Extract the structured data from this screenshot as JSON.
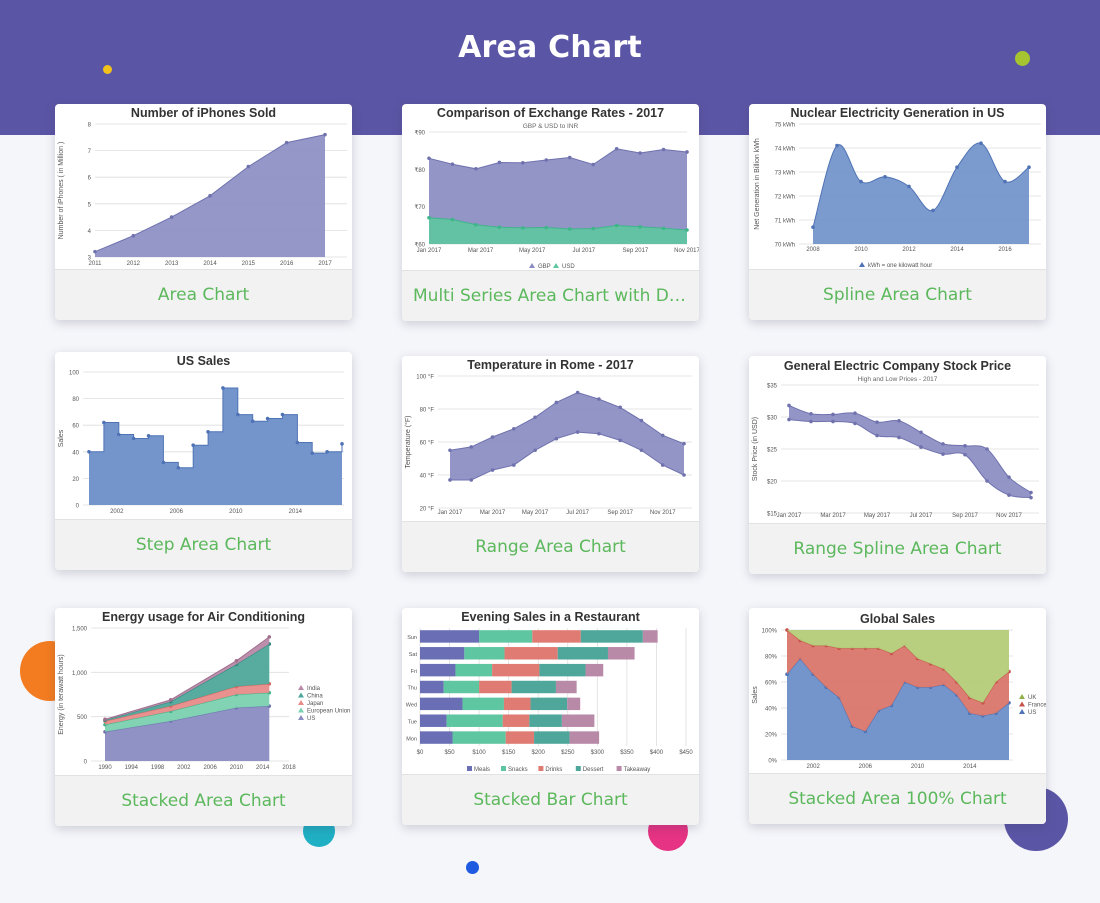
{
  "page": {
    "title": "Area Chart"
  },
  "decorations": {
    "colors": [
      "#f2c21b",
      "#a6c42f",
      "#f37c20",
      "#1fb0c4",
      "#e63383",
      "#1e5be0",
      "#5b55a5"
    ]
  },
  "cards": [
    {
      "caption": "Area Chart"
    },
    {
      "caption": "Multi Series Area Chart with Dat..."
    },
    {
      "caption": "Spline Area Chart"
    },
    {
      "caption": "Step Area Chart"
    },
    {
      "caption": "Range Area Chart"
    },
    {
      "caption": "Range Spline Area Chart"
    },
    {
      "caption": "Stacked Area Chart"
    },
    {
      "caption": "Stacked Bar Chart"
    },
    {
      "caption": "Stacked Area 100% Chart"
    }
  ],
  "chart_data": [
    {
      "id": "iphones",
      "type": "area",
      "title": "Number of iPhones Sold",
      "ylabel": "Number of iPhones ( in Million )",
      "x": [
        "2011",
        "2012",
        "2013",
        "2014",
        "2015",
        "2016",
        "2017"
      ],
      "values": [
        3.2,
        3.8,
        4.5,
        5.3,
        6.4,
        7.3,
        7.6
      ],
      "ylim": [
        3,
        8
      ],
      "yticks": [
        "3",
        "4",
        "5",
        "6",
        "7",
        "8"
      ],
      "colors": [
        "#8a8cc2"
      ]
    },
    {
      "id": "exchange",
      "type": "area",
      "title": "Comparison of Exchange Rates - 2017",
      "subtitle": "GBP & USD to INR",
      "yticks": [
        "₹60",
        "₹70",
        "₹80",
        "₹90"
      ],
      "ylim": [
        60,
        92
      ],
      "xticks": [
        "Jan 2017",
        "Mar 2017",
        "May 2017",
        "Jul 2017",
        "Sep 2017",
        "Nov 2017"
      ],
      "series": [
        {
          "name": "GBP",
          "values": [
            84.5,
            82.8,
            81.5,
            83.3,
            83.2,
            84,
            84.7,
            82.7,
            87.2,
            86,
            87,
            86.3
          ]
        },
        {
          "name": "USD",
          "values": [
            67.5,
            67,
            65.5,
            64.8,
            64.6,
            64.7,
            64.3,
            64.4,
            65.3,
            64.9,
            64.5,
            64
          ]
        }
      ],
      "legend": [
        "GBP",
        "USD"
      ],
      "colors": [
        "#8a8cc2",
        "#5ec6a0"
      ]
    },
    {
      "id": "nuclear",
      "type": "area",
      "title": "Nuclear Electricity Generation in US",
      "ylabel": "Net Generation in Billion kWh",
      "x": [
        "2008",
        "2009",
        "2010",
        "2011",
        "2012",
        "2013",
        "2014",
        "2015",
        "2016",
        "2017"
      ],
      "values": [
        70.7,
        74.1,
        72.6,
        72.8,
        72.4,
        71.4,
        73.2,
        74.2,
        72.6,
        73.2
      ],
      "ylim": [
        70,
        75
      ],
      "yticks": [
        "70 kWh",
        "71 kWh",
        "72 kWh",
        "73 kWh",
        "74 kWh",
        "75 kWh"
      ],
      "xticks": [
        "2008",
        "2010",
        "2012",
        "2014",
        "2016"
      ],
      "legend": [
        "kWh = one kilowatt hour"
      ],
      "colors": [
        "#6d8fc9"
      ]
    },
    {
      "id": "ussales",
      "type": "area",
      "title": "US Sales",
      "ylabel": "Sales",
      "values": [
        40,
        62,
        53,
        50,
        52,
        32,
        28,
        45,
        55,
        88,
        68,
        63,
        65,
        68,
        47,
        39,
        40,
        46
      ],
      "ylim": [
        0,
        100
      ],
      "yticks": [
        "0",
        "20",
        "40",
        "60",
        "80",
        "100"
      ],
      "xticks": [
        "2002",
        "2006",
        "2010",
        "2014"
      ],
      "colors": [
        "#6d8fc9"
      ]
    },
    {
      "id": "rome",
      "type": "area",
      "title": "Temperature in Rome - 2017",
      "ylabel": "Temperature (°F)",
      "high": [
        55,
        57,
        63,
        68,
        75,
        84,
        90,
        86,
        81,
        73,
        64,
        59
      ],
      "low": [
        37,
        37,
        43,
        46,
        55,
        62,
        66,
        65,
        61,
        55,
        46,
        40
      ],
      "ylim": [
        20,
        100
      ],
      "yticks": [
        "20 °F",
        "40 °F",
        "60 °F",
        "80 °F",
        "100 °F"
      ],
      "xticks": [
        "Jan 2017",
        "Mar 2017",
        "May 2017",
        "Jul 2017",
        "Sep 2017",
        "Nov 2017"
      ],
      "colors": [
        "#8a8cc2"
      ]
    },
    {
      "id": "gestock",
      "type": "area",
      "title": "General Electric Company Stock Price",
      "subtitle": "High and Low Prices - 2017",
      "ylabel": "Stock Price (in USD)",
      "high": [
        31.8,
        30.5,
        30.4,
        30.6,
        29.2,
        29.4,
        27.6,
        25.8,
        25.5,
        25,
        20.6,
        18.2
      ],
      "low": [
        29.6,
        29.3,
        29.3,
        29,
        27.1,
        26.8,
        25.3,
        24.2,
        24.1,
        20,
        17.8,
        17.4
      ],
      "ylim": [
        15,
        35
      ],
      "yticks": [
        "$15",
        "$20",
        "$25",
        "$30",
        "$35"
      ],
      "xticks": [
        "Jan 2017",
        "Mar 2017",
        "May 2017",
        "Jul 2017",
        "Sep 2017",
        "Nov 2017"
      ],
      "colors": [
        "#8a8cc2"
      ]
    },
    {
      "id": "energy",
      "type": "area",
      "title": "Energy usage for Air Conditioning",
      "ylabel": "Energy (in terawatt hours)",
      "x": [
        1990,
        2000,
        2010,
        2015
      ],
      "series": [
        {
          "name": "US",
          "values": [
            330,
            450,
            600,
            620
          ]
        },
        {
          "name": "European Union",
          "values": [
            80,
            110,
            150,
            150
          ]
        },
        {
          "name": "Japan",
          "values": [
            40,
            60,
            90,
            100
          ]
        },
        {
          "name": "China",
          "values": [
            10,
            50,
            250,
            450
          ]
        },
        {
          "name": "India",
          "values": [
            10,
            20,
            40,
            80
          ]
        }
      ],
      "ylim": [
        0,
        1500
      ],
      "yticks": [
        "0",
        "500",
        "1,000",
        "1,500"
      ],
      "xticks": [
        "1990",
        "1994",
        "1998",
        "2002",
        "2006",
        "2010",
        "2014",
        "2018"
      ],
      "legend": [
        "India",
        "China",
        "Japan",
        "European Union",
        "US"
      ],
      "colors": [
        "#8a8cc2",
        "#7ad1b0",
        "#e88b88",
        "#4ea79a",
        "#b88aa8"
      ]
    },
    {
      "id": "restaurant",
      "type": "bar",
      "title": "Evening Sales in a Restaurant",
      "categories": [
        "Mon",
        "Tue",
        "Wed",
        "Thu",
        "Fri",
        "Sat",
        "Sun"
      ],
      "series": [
        {
          "name": "Meals",
          "values": [
            55,
            45,
            72,
            40,
            60,
            75,
            100
          ]
        },
        {
          "name": "Snacks",
          "values": [
            90,
            95,
            70,
            60,
            62,
            68,
            90
          ]
        },
        {
          "name": "Drinks",
          "values": [
            48,
            45,
            45,
            55,
            80,
            90,
            82
          ]
        },
        {
          "name": "Dessert",
          "values": [
            60,
            55,
            62,
            75,
            78,
            85,
            105
          ]
        },
        {
          "name": "Takeaway",
          "values": [
            50,
            55,
            22,
            35,
            30,
            45,
            25
          ]
        }
      ],
      "xticks": [
        "$0",
        "$50",
        "$100",
        "$150",
        "$200",
        "$250",
        "$300",
        "$350",
        "$400",
        "$450"
      ],
      "xlim": [
        0,
        450
      ],
      "legend": [
        "Meals",
        "Snacks",
        "Drinks",
        "Dessert",
        "Takeaway"
      ],
      "colors": [
        "#6a6fb5",
        "#5ec6a0",
        "#e07b73",
        "#4ea79a",
        "#b88aa8"
      ]
    },
    {
      "id": "globalsales",
      "type": "area",
      "title": "Global Sales",
      "ylabel": "Sales",
      "series": [
        {
          "name": "US",
          "values": [
            66,
            78,
            66,
            56,
            48,
            26,
            22,
            38,
            42,
            60,
            56,
            56,
            58,
            50,
            36,
            34,
            36,
            44
          ]
        },
        {
          "name": "France",
          "values": [
            34,
            14,
            22,
            32,
            38,
            60,
            64,
            48,
            40,
            28,
            22,
            18,
            12,
            10,
            12,
            10,
            24,
            24
          ]
        },
        {
          "name": "UK",
          "values": [
            0,
            8,
            12,
            12,
            14,
            14,
            14,
            14,
            18,
            12,
            22,
            26,
            30,
            40,
            52,
            56,
            40,
            32
          ]
        }
      ],
      "ylim": [
        0,
        100
      ],
      "yticks": [
        "0%",
        "20%",
        "40%",
        "60%",
        "80%",
        "100%"
      ],
      "xticks": [
        "2002",
        "2006",
        "2010",
        "2014"
      ],
      "legend": [
        "UK",
        "France",
        "US"
      ],
      "colors": [
        "#6d8fc9",
        "#d9766b",
        "#b3cc78"
      ]
    }
  ]
}
